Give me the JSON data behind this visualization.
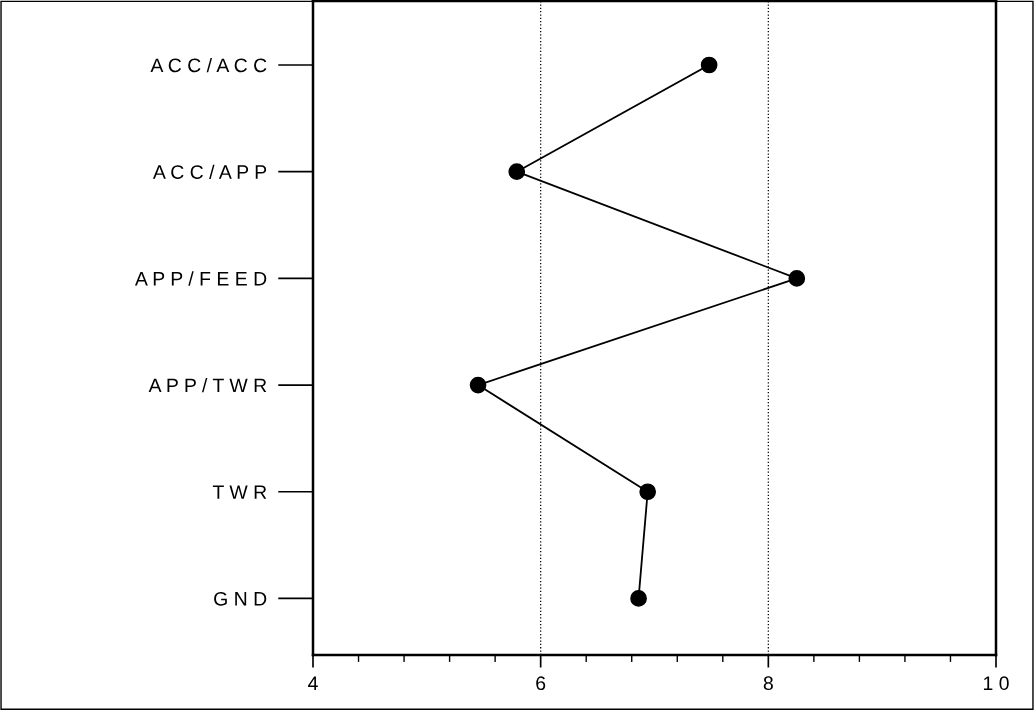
{
  "chart_data": {
    "type": "line",
    "orientation": "horizontal",
    "categories": [
      "A C C / A C C",
      "A C C / A P P",
      "A P P / F E E D",
      "A P P / T W R",
      "T W R",
      "G N D"
    ],
    "series": [
      {
        "color": "#000000",
        "values": [
          7.48,
          5.79,
          8.25,
          5.45,
          6.94,
          6.86
        ]
      }
    ],
    "xlim": [
      4,
      10
    ],
    "xticks": [
      4,
      6,
      8,
      {
        "value": 10,
        "label": "1 0"
      }
    ],
    "grid": "x",
    "marker": "circle",
    "line_style": "solid",
    "legend": false
  }
}
